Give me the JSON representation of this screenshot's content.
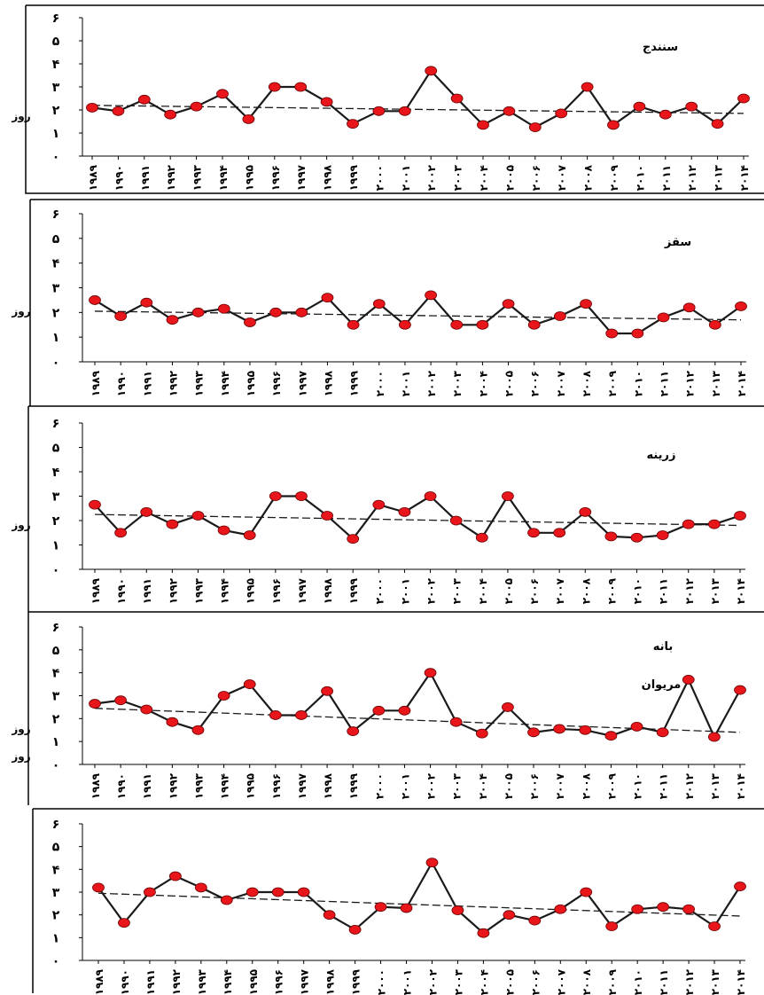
{
  "ylabel": "روز",
  "y_ticks": [
    "۰",
    "۱",
    "۲",
    "۳",
    "۴",
    "۵",
    "۶"
  ],
  "x_labels": [
    "۱۹۸۹",
    "۱۹۹۰",
    "۱۹۹۱",
    "۱۹۹۲",
    "۱۹۹۳",
    "۱۹۹۴",
    "۱۹۹۵",
    "۱۹۹۶",
    "۱۹۹۷",
    "۱۹۹۸",
    "۱۹۹۹",
    "۲۰۰۰",
    "۲۰۰۱",
    "۲۰۰۲",
    "۲۰۰۳",
    "۲۰۰۴",
    "۲۰۰۵",
    "۲۰۰۶",
    "۲۰۰۷",
    "۲۰۰۸",
    "۲۰۰۹",
    "۲۰۱۰",
    "۲۰۱۱",
    "۲۰۱۲",
    "۲۰۱۳",
    "۲۰۱۴"
  ],
  "colors": {
    "marker": "#e8151b",
    "line": "#1a1a1a",
    "trend": "#1a1a1a"
  },
  "chart_data": [
    {
      "type": "line",
      "title": "سنندج",
      "x": [
        1989,
        1990,
        1991,
        1992,
        1993,
        1994,
        1995,
        1996,
        1997,
        1998,
        1999,
        2000,
        2001,
        2002,
        2003,
        2004,
        2005,
        2006,
        2007,
        2008,
        2009,
        2010,
        2011,
        2012,
        2013,
        2014
      ],
      "values": [
        2.1,
        1.95,
        2.45,
        1.8,
        2.15,
        2.7,
        1.6,
        3.0,
        3.0,
        2.35,
        1.4,
        1.95,
        1.95,
        3.7,
        2.5,
        1.35,
        1.95,
        1.25,
        1.85,
        3.0,
        1.35,
        2.15,
        1.8,
        2.15,
        1.4,
        2.5
      ],
      "trend": [
        2.2,
        1.85
      ],
      "ylim": [
        0,
        6
      ],
      "ylabel": "روز"
    },
    {
      "type": "line",
      "title": "سقز",
      "x": [
        1989,
        1990,
        1991,
        1992,
        1993,
        1994,
        1995,
        1996,
        1997,
        1998,
        1999,
        2000,
        2001,
        2002,
        2003,
        2004,
        2005,
        2006,
        2007,
        2008,
        2009,
        2010,
        2011,
        2012,
        2013,
        2014
      ],
      "values": [
        2.5,
        1.85,
        2.4,
        1.7,
        2.0,
        2.15,
        1.6,
        2.0,
        2.0,
        2.6,
        1.5,
        2.35,
        1.5,
        2.7,
        1.5,
        1.5,
        2.35,
        1.5,
        1.85,
        2.35,
        1.15,
        1.15,
        1.8,
        2.2,
        1.5,
        2.25
      ],
      "trend": [
        2.05,
        1.7
      ],
      "ylim": [
        0,
        6
      ],
      "ylabel": "روز"
    },
    {
      "type": "line",
      "title": "زرینه",
      "x": [
        1989,
        1990,
        1991,
        1992,
        1993,
        1994,
        1995,
        1996,
        1997,
        1998,
        1999,
        2000,
        2001,
        2002,
        2003,
        2004,
        2005,
        2006,
        2007,
        2008,
        2009,
        2010,
        2011,
        2012,
        2013,
        2014
      ],
      "values": [
        2.65,
        1.5,
        2.35,
        1.85,
        2.2,
        1.6,
        1.4,
        3.0,
        3.0,
        2.2,
        1.25,
        2.65,
        2.35,
        3.0,
        2.0,
        1.3,
        3.0,
        1.5,
        1.5,
        2.35,
        1.35,
        1.3,
        1.4,
        1.85,
        1.85,
        2.2
      ],
      "trend": [
        2.25,
        1.8
      ],
      "ylim": [
        0,
        6
      ],
      "ylabel": "روز"
    },
    {
      "type": "line",
      "title": "بانه",
      "x": [
        1989,
        1990,
        1991,
        1992,
        1993,
        1994,
        1995,
        1996,
        1997,
        1998,
        1999,
        2000,
        2001,
        2002,
        2003,
        2004,
        2005,
        2006,
        2007,
        2008,
        2009,
        2010,
        2011,
        2012,
        2013,
        2014
      ],
      "values": [
        2.65,
        2.8,
        2.4,
        1.85,
        1.5,
        3.0,
        3.5,
        2.15,
        2.15,
        3.2,
        1.45,
        2.35,
        2.35,
        4.0,
        1.85,
        1.35,
        2.5,
        1.4,
        1.55,
        1.5,
        1.25,
        1.65,
        1.4,
        3.7,
        1.2,
        3.25
      ],
      "trend": [
        2.45,
        1.4
      ],
      "ylim": [
        0,
        6
      ],
      "ylabel": "روز"
    },
    {
      "type": "line",
      "title": "مریوان",
      "x": [
        1989,
        1990,
        1991,
        1992,
        1993,
        1994,
        1995,
        1996,
        1997,
        1998,
        1999,
        2000,
        2001,
        2002,
        2003,
        2004,
        2005,
        2006,
        2007,
        2008,
        2009,
        2010,
        2011,
        2012,
        2013,
        2014
      ],
      "values": [
        3.2,
        1.65,
        3.0,
        3.7,
        3.2,
        2.65,
        3.0,
        3.0,
        3.0,
        2.0,
        1.35,
        2.35,
        2.3,
        4.3,
        2.2,
        1.2,
        2.0,
        1.75,
        2.25,
        3.0,
        1.5,
        2.25,
        2.35,
        2.25,
        1.5,
        3.25
      ],
      "trend": [
        2.95,
        1.95
      ],
      "ylim": [
        0,
        6
      ],
      "ylabel": "روز"
    }
  ]
}
